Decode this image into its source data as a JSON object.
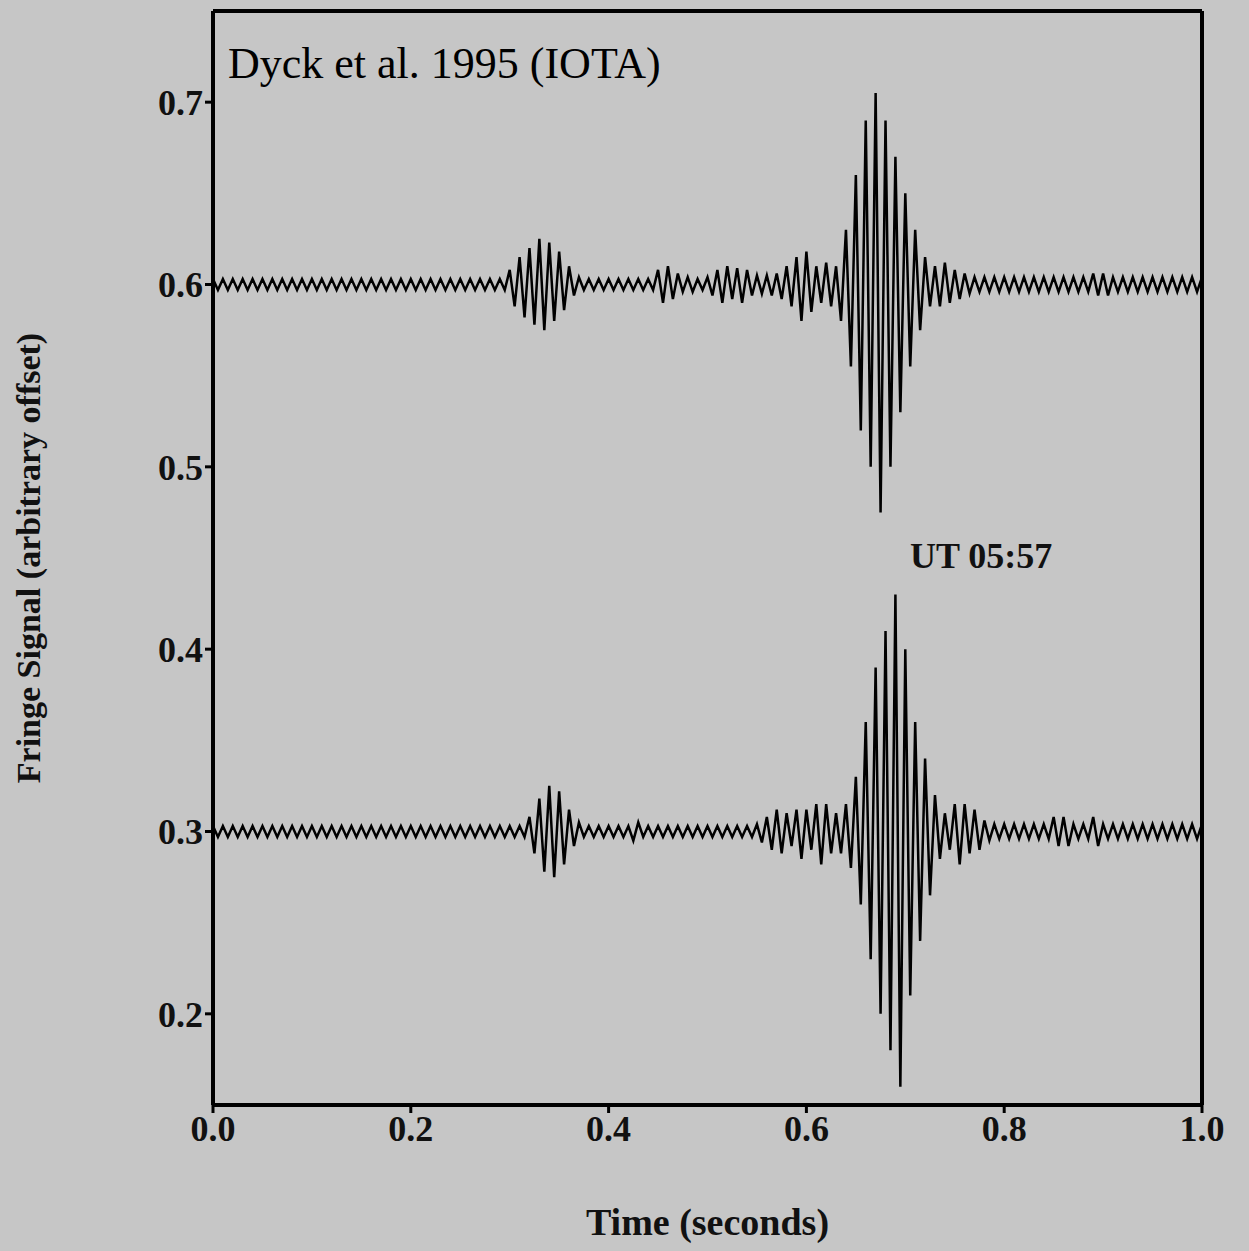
{
  "chart_data": {
    "type": "line",
    "annotations": [
      "Dyck et al. 1995 (IOTA)",
      "UT 05:57"
    ],
    "xlabel": "Time (seconds)",
    "ylabel": "Fringe Signal (arbitrary offset)",
    "xlim": [
      0,
      1
    ],
    "ylim": [
      0.15,
      0.75
    ],
    "xticks": [
      {
        "value": 0,
        "label": "0.0"
      },
      0.2,
      0.4,
      0.6,
      0.8,
      {
        "value": 1,
        "label": "1.0"
      }
    ],
    "yticks": [
      0.2,
      0.3,
      0.4,
      0.5,
      0.6,
      0.7
    ],
    "grid": false,
    "x": [
      0,
      0.005,
      0.01,
      0.015,
      0.02,
      0.025,
      0.03,
      0.035,
      0.04,
      0.045,
      0.05,
      0.055,
      0.06,
      0.065,
      0.07,
      0.075,
      0.08,
      0.085,
      0.09,
      0.095,
      0.1,
      0.105,
      0.11,
      0.115,
      0.12,
      0.125,
      0.13,
      0.135,
      0.14,
      0.145,
      0.15,
      0.155,
      0.16,
      0.165,
      0.17,
      0.175,
      0.18,
      0.185,
      0.19,
      0.195,
      0.2,
      0.205,
      0.21,
      0.215,
      0.22,
      0.225,
      0.23,
      0.235,
      0.24,
      0.245,
      0.25,
      0.255,
      0.26,
      0.265,
      0.27,
      0.275,
      0.28,
      0.285,
      0.29,
      0.295,
      0.3,
      0.305,
      0.31,
      0.315,
      0.32,
      0.325,
      0.33,
      0.335,
      0.34,
      0.345,
      0.35,
      0.355,
      0.36,
      0.365,
      0.37,
      0.375,
      0.38,
      0.385,
      0.39,
      0.395,
      0.4,
      0.405,
      0.41,
      0.415,
      0.42,
      0.425,
      0.43,
      0.435,
      0.44,
      0.445,
      0.45,
      0.455,
      0.46,
      0.465,
      0.47,
      0.475,
      0.48,
      0.485,
      0.49,
      0.495,
      0.5,
      0.505,
      0.51,
      0.515,
      0.52,
      0.525,
      0.53,
      0.535,
      0.54,
      0.545,
      0.55,
      0.555,
      0.56,
      0.565,
      0.57,
      0.575,
      0.58,
      0.585,
      0.59,
      0.595,
      0.6,
      0.605,
      0.61,
      0.615,
      0.62,
      0.625,
      0.63,
      0.635,
      0.64,
      0.645,
      0.65,
      0.655,
      0.66,
      0.665,
      0.67,
      0.675,
      0.68,
      0.685,
      0.69,
      0.695,
      0.7,
      0.705,
      0.71,
      0.715,
      0.72,
      0.725,
      0.73,
      0.735,
      0.74,
      0.745,
      0.75,
      0.755,
      0.76,
      0.765,
      0.77,
      0.775,
      0.78,
      0.785,
      0.79,
      0.795,
      0.8,
      0.805,
      0.81,
      0.815,
      0.82,
      0.825,
      0.83,
      0.835,
      0.84,
      0.845,
      0.85,
      0.855,
      0.86,
      0.865,
      0.87,
      0.875,
      0.88,
      0.885,
      0.89,
      0.895,
      0.9,
      0.905,
      0.91,
      0.915,
      0.92,
      0.925,
      0.93,
      0.935,
      0.94,
      0.945,
      0.95,
      0.955,
      0.96,
      0.965,
      0.97,
      0.975,
      0.98,
      0.985,
      0.99,
      0.995,
      1
    ],
    "series": [
      {
        "color": "#000000",
        "line_style": "solid",
        "values": [
          0.603,
          0.597,
          0.603,
          0.597,
          0.603,
          0.597,
          0.603,
          0.597,
          0.603,
          0.597,
          0.603,
          0.597,
          0.603,
          0.597,
          0.603,
          0.597,
          0.603,
          0.597,
          0.603,
          0.597,
          0.603,
          0.597,
          0.603,
          0.597,
          0.603,
          0.597,
          0.603,
          0.597,
          0.603,
          0.597,
          0.603,
          0.597,
          0.603,
          0.597,
          0.603,
          0.597,
          0.603,
          0.597,
          0.603,
          0.597,
          0.603,
          0.597,
          0.603,
          0.597,
          0.603,
          0.597,
          0.603,
          0.597,
          0.603,
          0.597,
          0.603,
          0.597,
          0.603,
          0.597,
          0.603,
          0.597,
          0.603,
          0.597,
          0.603,
          0.597,
          0.608,
          0.588,
          0.615,
          0.582,
          0.62,
          0.578,
          0.625,
          0.575,
          0.623,
          0.58,
          0.618,
          0.586,
          0.61,
          0.594,
          0.604,
          0.597,
          0.603,
          0.597,
          0.603,
          0.597,
          0.603,
          0.597,
          0.603,
          0.597,
          0.603,
          0.597,
          0.603,
          0.597,
          0.603,
          0.597,
          0.608,
          0.59,
          0.61,
          0.592,
          0.606,
          0.596,
          0.604,
          0.596,
          0.603,
          0.597,
          0.604,
          0.594,
          0.608,
          0.59,
          0.61,
          0.592,
          0.609,
          0.59,
          0.608,
          0.594,
          0.605,
          0.595,
          0.605,
          0.594,
          0.606,
          0.592,
          0.61,
          0.588,
          0.615,
          0.58,
          0.618,
          0.585,
          0.61,
          0.59,
          0.612,
          0.588,
          0.61,
          0.58,
          0.63,
          0.555,
          0.66,
          0.52,
          0.69,
          0.5,
          0.705,
          0.475,
          0.69,
          0.5,
          0.67,
          0.53,
          0.65,
          0.555,
          0.63,
          0.575,
          0.615,
          0.588,
          0.61,
          0.588,
          0.612,
          0.59,
          0.608,
          0.592,
          0.606,
          0.595,
          0.604,
          0.596,
          0.604,
          0.596,
          0.604,
          0.596,
          0.604,
          0.596,
          0.604,
          0.596,
          0.604,
          0.596,
          0.604,
          0.596,
          0.604,
          0.596,
          0.604,
          0.596,
          0.604,
          0.596,
          0.604,
          0.596,
          0.604,
          0.596,
          0.606,
          0.594,
          0.606,
          0.594,
          0.604,
          0.596,
          0.604,
          0.596,
          0.604,
          0.596,
          0.604,
          0.596,
          0.604,
          0.596,
          0.604,
          0.596,
          0.604,
          0.596,
          0.604,
          0.596,
          0.604,
          0.596,
          0.604
        ]
      },
      {
        "color": "#000000",
        "line_style": "solid",
        "values": [
          0.303,
          0.297,
          0.303,
          0.297,
          0.303,
          0.297,
          0.303,
          0.297,
          0.303,
          0.297,
          0.303,
          0.297,
          0.303,
          0.297,
          0.303,
          0.297,
          0.303,
          0.297,
          0.303,
          0.297,
          0.303,
          0.297,
          0.303,
          0.297,
          0.303,
          0.297,
          0.303,
          0.297,
          0.303,
          0.297,
          0.303,
          0.297,
          0.303,
          0.297,
          0.303,
          0.297,
          0.303,
          0.297,
          0.303,
          0.297,
          0.303,
          0.297,
          0.303,
          0.297,
          0.303,
          0.297,
          0.303,
          0.297,
          0.303,
          0.297,
          0.303,
          0.297,
          0.303,
          0.297,
          0.303,
          0.297,
          0.303,
          0.297,
          0.303,
          0.297,
          0.303,
          0.297,
          0.303,
          0.297,
          0.308,
          0.288,
          0.318,
          0.278,
          0.325,
          0.275,
          0.322,
          0.282,
          0.312,
          0.292,
          0.305,
          0.297,
          0.303,
          0.297,
          0.303,
          0.297,
          0.303,
          0.297,
          0.303,
          0.297,
          0.303,
          0.295,
          0.305,
          0.297,
          0.303,
          0.297,
          0.303,
          0.297,
          0.303,
          0.297,
          0.303,
          0.297,
          0.303,
          0.297,
          0.303,
          0.297,
          0.303,
          0.297,
          0.303,
          0.297,
          0.303,
          0.297,
          0.303,
          0.297,
          0.303,
          0.297,
          0.304,
          0.294,
          0.308,
          0.29,
          0.312,
          0.288,
          0.31,
          0.292,
          0.312,
          0.285,
          0.312,
          0.29,
          0.315,
          0.282,
          0.315,
          0.288,
          0.31,
          0.288,
          0.315,
          0.28,
          0.33,
          0.26,
          0.36,
          0.23,
          0.39,
          0.2,
          0.41,
          0.18,
          0.43,
          0.16,
          0.4,
          0.21,
          0.36,
          0.24,
          0.34,
          0.265,
          0.32,
          0.285,
          0.31,
          0.29,
          0.315,
          0.282,
          0.315,
          0.288,
          0.312,
          0.29,
          0.306,
          0.295,
          0.304,
          0.296,
          0.304,
          0.296,
          0.304,
          0.296,
          0.304,
          0.296,
          0.304,
          0.296,
          0.304,
          0.296,
          0.308,
          0.292,
          0.308,
          0.292,
          0.304,
          0.296,
          0.304,
          0.296,
          0.308,
          0.292,
          0.304,
          0.296,
          0.304,
          0.296,
          0.304,
          0.296,
          0.304,
          0.296,
          0.304,
          0.296,
          0.304,
          0.296,
          0.304,
          0.296,
          0.304,
          0.296,
          0.304,
          0.296,
          0.304,
          0.296,
          0.304
        ]
      }
    ]
  }
}
